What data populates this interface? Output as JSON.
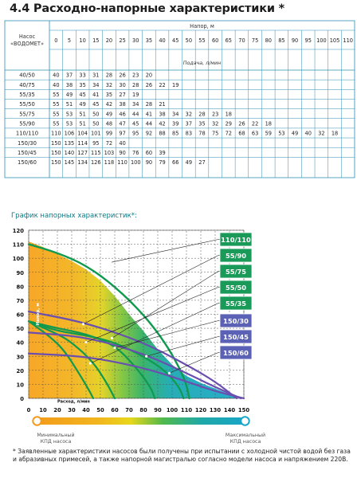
{
  "section_title": "4.4 Расходно-напорные характеристики *",
  "table": {
    "corner_label_1": "Насос",
    "corner_label_2": "«ВОДОМЕТ»",
    "head_header": "Напор, м",
    "flow_header": "Подача, л/мин",
    "head_values": [
      "0",
      "5",
      "10",
      "15",
      "20",
      "25",
      "30",
      "35",
      "40",
      "45",
      "50",
      "55",
      "60",
      "65",
      "70",
      "75",
      "80",
      "85",
      "90",
      "95",
      "100",
      "105",
      "110"
    ],
    "rows": [
      {
        "model": "40/50",
        "values": [
          "40",
          "37",
          "33",
          "31",
          "28",
          "26",
          "23",
          "20"
        ]
      },
      {
        "model": "40/75",
        "values": [
          "40",
          "38",
          "35",
          "34",
          "32",
          "30",
          "28",
          "26",
          "22",
          "19"
        ]
      },
      {
        "model": "55/35",
        "values": [
          "55",
          "49",
          "45",
          "41",
          "35",
          "27",
          "19"
        ]
      },
      {
        "model": "55/50",
        "values": [
          "55",
          "51",
          "49",
          "45",
          "42",
          "38",
          "34",
          "28",
          "21"
        ]
      },
      {
        "model": "55/75",
        "values": [
          "55",
          "53",
          "51",
          "50",
          "49",
          "46",
          "44",
          "41",
          "38",
          "34",
          "32",
          "28",
          "23",
          "18"
        ]
      },
      {
        "model": "55/90",
        "values": [
          "55",
          "53",
          "51",
          "50",
          "48",
          "47",
          "45",
          "44",
          "42",
          "39",
          "37",
          "35",
          "32",
          "29",
          "26",
          "22",
          "18"
        ]
      },
      {
        "model": "110/110",
        "values": [
          "110",
          "106",
          "104",
          "101",
          "99",
          "97",
          "95",
          "92",
          "88",
          "85",
          "83",
          "78",
          "75",
          "72",
          "68",
          "63",
          "59",
          "53",
          "49",
          "40",
          "32",
          "18"
        ]
      },
      {
        "model": "150/30",
        "values": [
          "150",
          "135",
          "114",
          "95",
          "72",
          "40"
        ]
      },
      {
        "model": "150/45",
        "values": [
          "150",
          "140",
          "127",
          "115",
          "103",
          "90",
          "76",
          "60",
          "39"
        ]
      },
      {
        "model": "150/60",
        "values": [
          "150",
          "145",
          "134",
          "126",
          "118",
          "110",
          "100",
          "90",
          "79",
          "66",
          "49",
          "27"
        ]
      }
    ]
  },
  "chart": {
    "title": "График напорных характеристик*:",
    "y_axis_label": "Напор, м",
    "x_axis_label": "Расход, л/мин",
    "y_ticks": [
      "0",
      "10",
      "20",
      "30",
      "40",
      "50",
      "60",
      "70",
      "80",
      "90",
      "100",
      "110",
      "120"
    ],
    "x_ticks": [
      "0",
      "10",
      "20",
      "30",
      "40",
      "50",
      "60",
      "70",
      "80",
      "90",
      "100",
      "110",
      "120",
      "130",
      "140",
      "150"
    ],
    "labels": [
      {
        "text": "110/110",
        "color": "#1a9a58"
      },
      {
        "text": "55/90",
        "color": "#1a9a58"
      },
      {
        "text": "55/75",
        "color": "#1a9a58"
      },
      {
        "text": "55/50",
        "color": "#1a9a58"
      },
      {
        "text": "55/35",
        "color": "#1a9a58"
      },
      {
        "text": "150/30",
        "color": "#5b62b5"
      },
      {
        "text": "150/45",
        "color": "#5b62b5"
      },
      {
        "text": "150/60",
        "color": "#5b62b5"
      }
    ],
    "colors": {
      "orange": "#f59a1d",
      "yellow": "#e6d21c",
      "green": "#2fb160",
      "teal": "#18a6b6",
      "blue_curve": "#6a4fb0",
      "green_curve": "#0f9a4e"
    }
  },
  "legend": {
    "min_line1": "Минимальный",
    "min_line2": "КПД насоса",
    "max_line1": "Максимальный",
    "max_line2": "КПД насоса"
  },
  "footnote": "* Заявленные характеристики насосов были получены при испытании с холодной чистой водой без газа и абразивных примесей, а также напорной магистралью согласно модели насоса и напряжением 220В."
}
